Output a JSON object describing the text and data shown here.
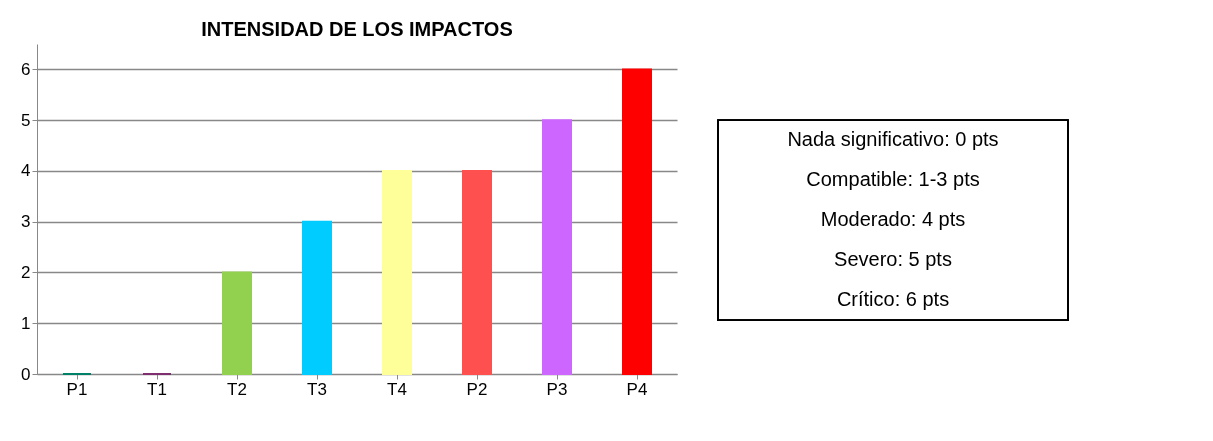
{
  "chart_data": {
    "type": "bar",
    "title": "INTENSIDAD DE LOS IMPACTOS",
    "categories": [
      "P1",
      "T1",
      "T2",
      "T3",
      "T4",
      "P2",
      "P3",
      "P4"
    ],
    "values": [
      0,
      0,
      2,
      3,
      4,
      4,
      5,
      6
    ],
    "colors": [
      "#008066",
      "#7f2f6f",
      "#92d050",
      "#00ccff",
      "#ffff99",
      "#ff5050",
      "#cc66ff",
      "#ff0000"
    ],
    "ylim": [
      0,
      6.5
    ],
    "yticks": [
      0,
      1,
      2,
      3,
      4,
      5,
      6
    ],
    "grid": "y",
    "annotations": [
      "Nada significativo: 0 pts",
      "Compatible: 1-3 pts",
      "Moderado: 4 pts",
      "Severo: 5 pts",
      "Crítico: 6 pts"
    ]
  }
}
